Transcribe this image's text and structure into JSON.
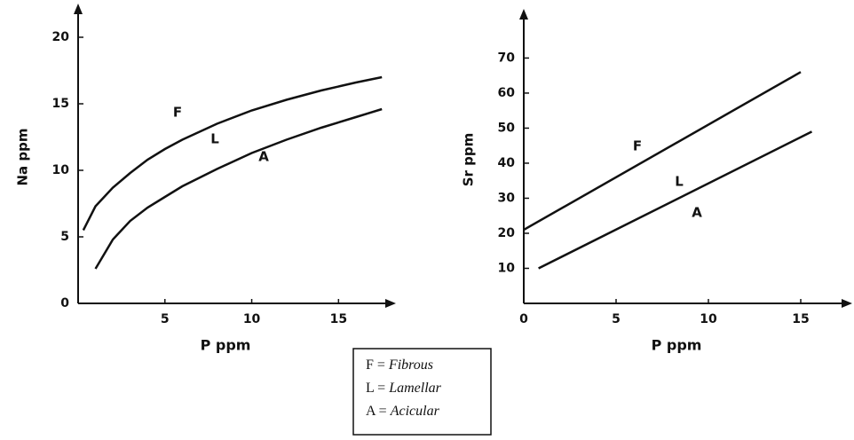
{
  "chart_data": [
    {
      "type": "line",
      "xlabel": "P ppm",
      "ylabel": "Na ppm",
      "xlim": [
        0,
        18
      ],
      "ylim": [
        0,
        22
      ],
      "xticks": [
        5,
        10,
        15
      ],
      "yticks": [
        0,
        5,
        10,
        15,
        20
      ],
      "annotations": [
        "F",
        "L",
        "A"
      ],
      "series": [
        {
          "color": "#111111",
          "x": [
            0.3,
            1,
            2,
            3,
            4,
            5,
            6,
            8,
            10,
            12,
            14,
            16,
            17.5
          ],
          "values": [
            5.5,
            7.3,
            8.7,
            9.8,
            10.8,
            11.6,
            12.3,
            13.5,
            14.5,
            15.3,
            16,
            16.6,
            17
          ]
        },
        {
          "color": "#111111",
          "x": [
            1,
            2,
            3,
            4,
            5,
            6,
            8,
            10,
            12,
            14,
            16,
            17.5
          ],
          "values": [
            2.6,
            4.8,
            6.2,
            7.2,
            8,
            8.8,
            10.1,
            11.3,
            12.3,
            13.2,
            14,
            14.6
          ]
        }
      ]
    },
    {
      "type": "line",
      "xlabel": "P ppm",
      "ylabel": "Sr ppm",
      "xlim": [
        0,
        17.5
      ],
      "ylim": [
        0,
        82
      ],
      "xticks": [
        0,
        5,
        10,
        15
      ],
      "yticks": [
        10,
        20,
        30,
        40,
        50,
        60,
        70
      ],
      "annotations": [
        "F",
        "L",
        "A"
      ],
      "series": [
        {
          "color": "#111111",
          "x": [
            0,
            15
          ],
          "values": [
            21,
            66
          ]
        },
        {
          "color": "#111111",
          "x": [
            0.8,
            15.6
          ],
          "values": [
            10,
            49
          ]
        }
      ]
    }
  ],
  "legend": [
    {
      "symbol": "F =",
      "meaning": "Fibrous"
    },
    {
      "symbol": "L =",
      "meaning": "Lamellar"
    },
    {
      "symbol": "A =",
      "meaning": "Acicular"
    }
  ]
}
